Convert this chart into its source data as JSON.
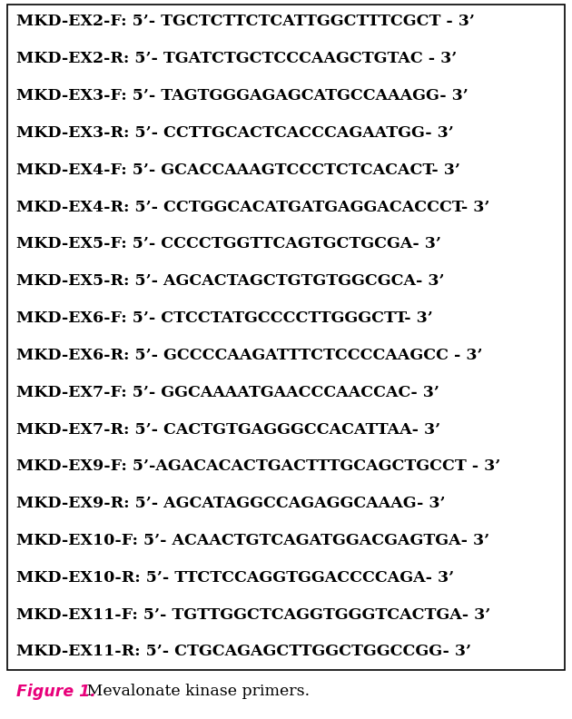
{
  "lines": [
    "MKD-EX2-F: 5’- TGCTCTTCTCATTGGCTTTCGCT - 3’",
    "MKD-EX2-R: 5’- TGATCTGCTCCCAAGCTGTAC - 3’",
    "MKD-EX3-F: 5’- TAGTGGGAGAGCATGCCAAAGG- 3’",
    "MKD-EX3-R: 5’- CCTTGCACTCACCCAGAATGG- 3’",
    "MKD-EX4-F: 5’- GCACCAAAGTCCCTCTCACACT- 3’",
    "MKD-EX4-R: 5’- CCTGGCACATGATGAGGACACCCT- 3’",
    "MKD-EX5-F: 5’- CCCCTGGTTCAGTGCTGCGA- 3’",
    "MKD-EX5-R: 5’- AGCACTAGCTGTGTGGCGCA- 3’",
    "MKD-EX6-F: 5’- CTCCTATGCCCCTTGGGCTT- 3’",
    "MKD-EX6-R: 5’- GCCCCAAGATTTCTCCCCAAGCC - 3’",
    "MKD-EX7-F: 5’- GGCAAAATGAACCCAACCAC- 3’",
    "MKD-EX7-R: 5’- CACTGTGAGGGCCACATTAA- 3’",
    "MKD-EX9-F: 5’-AGACACACTGACTTTGCAGCTGCCT - 3’",
    "MKD-EX9-R: 5’- AGCATAGGCCAGAGGCAAAG- 3’",
    "MKD-EX10-F: 5’- ACAACTGTCAGATGGACGAGTGA- 3’",
    "MKD-EX10-R: 5’- TTCTCCAGGTGGACCCCAGA- 3’",
    "MKD-EX11-F: 5’- TGTTGGCTCAGGTGGGTCACTGA- 3’",
    "MKD-EX11-R: 5’- CTGCAGAGCTTGGCTGGCCGG- 3’"
  ],
  "figure_label": "Figure 1.",
  "figure_caption": " Mevalonate kinase primers.",
  "bg_color": "#ffffff",
  "border_color": "#000000",
  "text_color": "#000000",
  "label_color": "#e8007a",
  "font_size": 12.5,
  "caption_font_size": 12.5,
  "label_font_size": 12.5
}
